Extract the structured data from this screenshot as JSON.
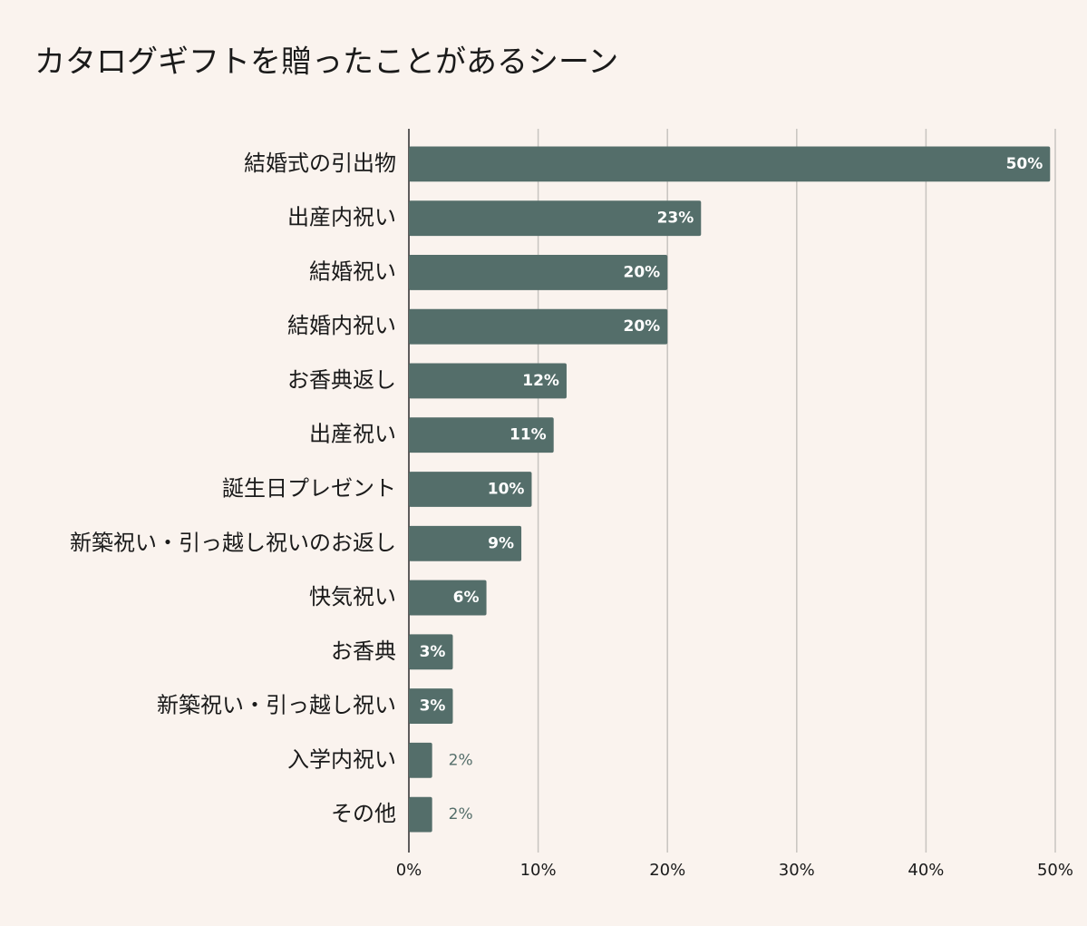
{
  "chart_data": {
    "type": "bar",
    "orientation": "horizontal",
    "title": "カタログギフトを贈ったことがあるシーン",
    "categories": [
      "結婚式の引出物",
      "出産内祝い",
      "結婚祝い",
      "結婚内祝い",
      "お香典返し",
      "出産祝い",
      "誕生日プレゼント",
      "新築祝い・引っ越し祝いのお返し",
      "快気祝い",
      "お香典",
      "新築祝い・引っ越し祝い",
      "入学内祝い",
      "その他"
    ],
    "values": [
      49.6,
      22.6,
      20,
      20,
      12.2,
      11.2,
      9.5,
      8.7,
      6,
      3.4,
      3.4,
      1.8,
      1.8
    ],
    "value_labels": [
      "50%",
      "23%",
      "20%",
      "20%",
      "12%",
      "11%",
      "10%",
      "9%",
      "6%",
      "3%",
      "3%",
      "2%",
      "2%"
    ],
    "color": "#546e6a",
    "xlim": [
      0,
      50
    ],
    "xticks": [
      {
        "value": 0,
        "label": "0%"
      },
      {
        "value": 10,
        "label": "10%"
      },
      {
        "value": 20,
        "label": "20%"
      },
      {
        "value": 30,
        "label": "30%"
      },
      {
        "value": 40,
        "label": "40%"
      },
      {
        "value": 50,
        "label": "50%"
      }
    ],
    "grid": true
  }
}
